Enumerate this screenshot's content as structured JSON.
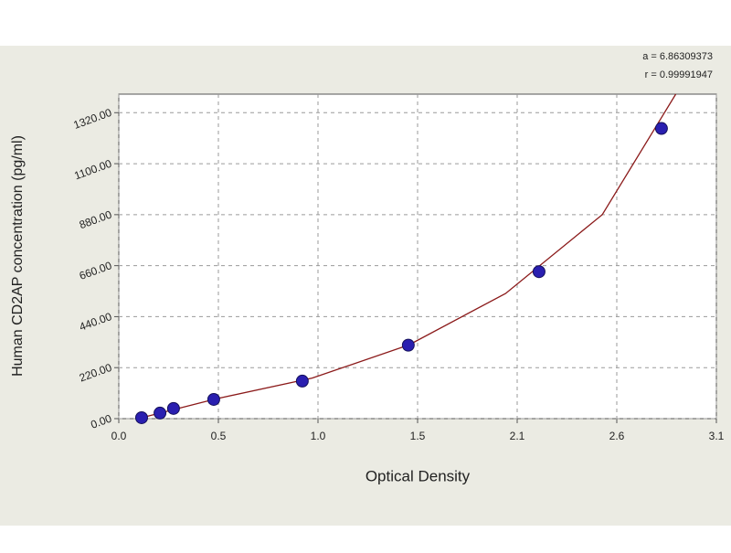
{
  "chart_data": {
    "type": "scatter",
    "xlabel": "Optical Density",
    "ylabel": "Human CD2AP concentration (pg/ml)",
    "annotations": [
      "a = 6.86309373",
      "r = 0.99991947"
    ],
    "xlim": [
      0,
      3.09
    ],
    "ylim": [
      0,
      1400
    ],
    "xticks": [
      {
        "value": 0,
        "label": "0.0"
      },
      {
        "value": 0.515,
        "label": "0.5"
      },
      {
        "value": 1.03,
        "label": "1.0"
      },
      {
        "value": 1.545,
        "label": "1.5"
      },
      {
        "value": 2.06,
        "label": "2.1"
      },
      {
        "value": 2.575,
        "label": "2.6"
      },
      {
        "value": 3.09,
        "label": "3.1"
      }
    ],
    "yticks": [
      {
        "value": 0,
        "label": "0.00"
      },
      {
        "value": 220,
        "label": "220.00"
      },
      {
        "value": 440,
        "label": "440.00"
      },
      {
        "value": 660,
        "label": "660.00"
      },
      {
        "value": 880,
        "label": "880.00"
      },
      {
        "value": 1100,
        "label": "1100.00"
      },
      {
        "value": 1320,
        "label": "1320.00"
      }
    ],
    "grid": true,
    "series": [
      {
        "type": "line",
        "color": "#8b1a1a",
        "x": [
          0.1,
          0.5,
          1.0,
          1.5,
          2.0,
          2.5,
          2.88
        ],
        "values": [
          0,
          85,
          175,
          318,
          540,
          880,
          1400
        ]
      },
      {
        "type": "scatter",
        "color": "#2a1fb0",
        "x": [
          0.118,
          0.213,
          0.283,
          0.491,
          0.949,
          1.497,
          2.173,
          2.806
        ],
        "values": [
          4,
          24,
          44,
          83,
          162,
          317,
          634,
          1252
        ]
      }
    ]
  }
}
